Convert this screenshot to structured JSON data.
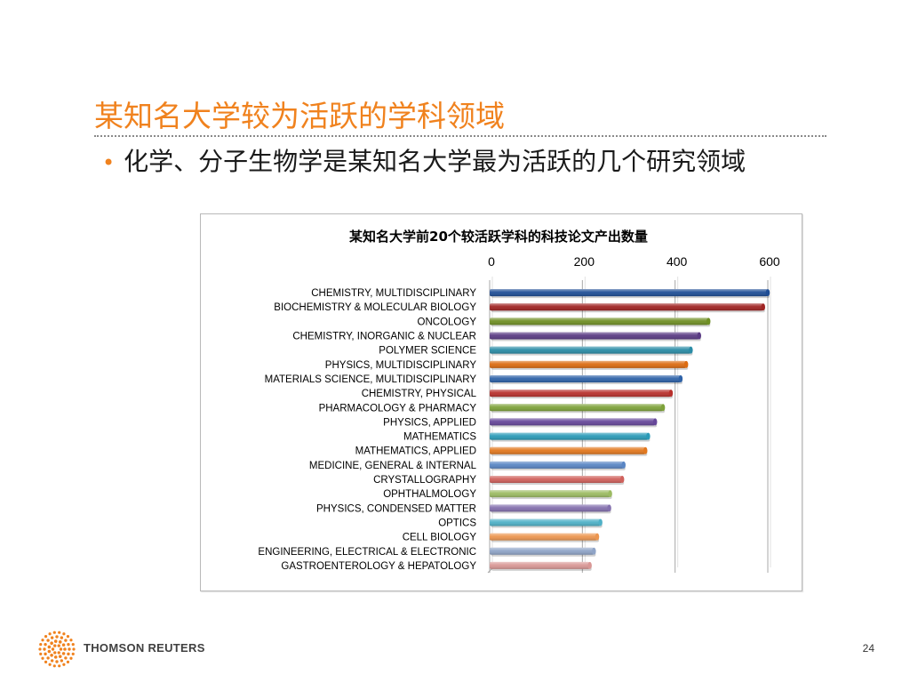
{
  "slide": {
    "title": "某知名大学较为活跃的学科领域",
    "bullet_symbol": "•",
    "bullet_text": "化学、分子生物学是某知名大学最为活跃的几个研究领域",
    "page_number": "24",
    "brand_name": "THOMSON REUTERS",
    "brand_color": "#f0821e"
  },
  "chart_data": {
    "type": "bar",
    "orientation": "horizontal",
    "title": "某知名大学前20个较活跃学科的科技论文产出数量",
    "x_axis_position": "top",
    "xlim": [
      0,
      600
    ],
    "xticks": [
      0,
      200,
      400,
      600
    ],
    "grid": true,
    "categories": [
      "CHEMISTRY, MULTIDISCIPLINARY",
      "BIOCHEMISTRY & MOLECULAR BIOLOGY",
      "ONCOLOGY",
      "CHEMISTRY, INORGANIC & NUCLEAR",
      "POLYMER SCIENCE",
      "PHYSICS, MULTIDISCIPLINARY",
      "MATERIALS SCIENCE, MULTIDISCIPLINARY",
      "CHEMISTRY, PHYSICAL",
      "PHARMACOLOGY & PHARMACY",
      "PHYSICS, APPLIED",
      "MATHEMATICS",
      "MATHEMATICS, APPLIED",
      "MEDICINE, GENERAL & INTERNAL",
      "CRYSTALLOGRAPHY",
      "OPHTHALMOLOGY",
      "PHYSICS, CONDENSED MATTER",
      "OPTICS",
      "CELL BIOLOGY",
      "ENGINEERING, ELECTRICAL & ELECTRONIC",
      "GASTROENTEROLOGY & HEPATOLOGY"
    ],
    "values": [
      600,
      590,
      472,
      452,
      434,
      424,
      412,
      391,
      374,
      357,
      342,
      336,
      289,
      286,
      260,
      258,
      239,
      232,
      225,
      216
    ],
    "bar_colors": [
      "#1f4e96",
      "#a02423",
      "#6f8f24",
      "#5a3b84",
      "#2a8ca6",
      "#dc6c12",
      "#2e62a8",
      "#b8302c",
      "#7ea23a",
      "#66479a",
      "#2b9bb8",
      "#e2781e",
      "#5a86c4",
      "#d0615c",
      "#9cbb62",
      "#8470ae",
      "#4fb1c7",
      "#ec9650",
      "#8fa4c7",
      "#d99795"
    ]
  }
}
